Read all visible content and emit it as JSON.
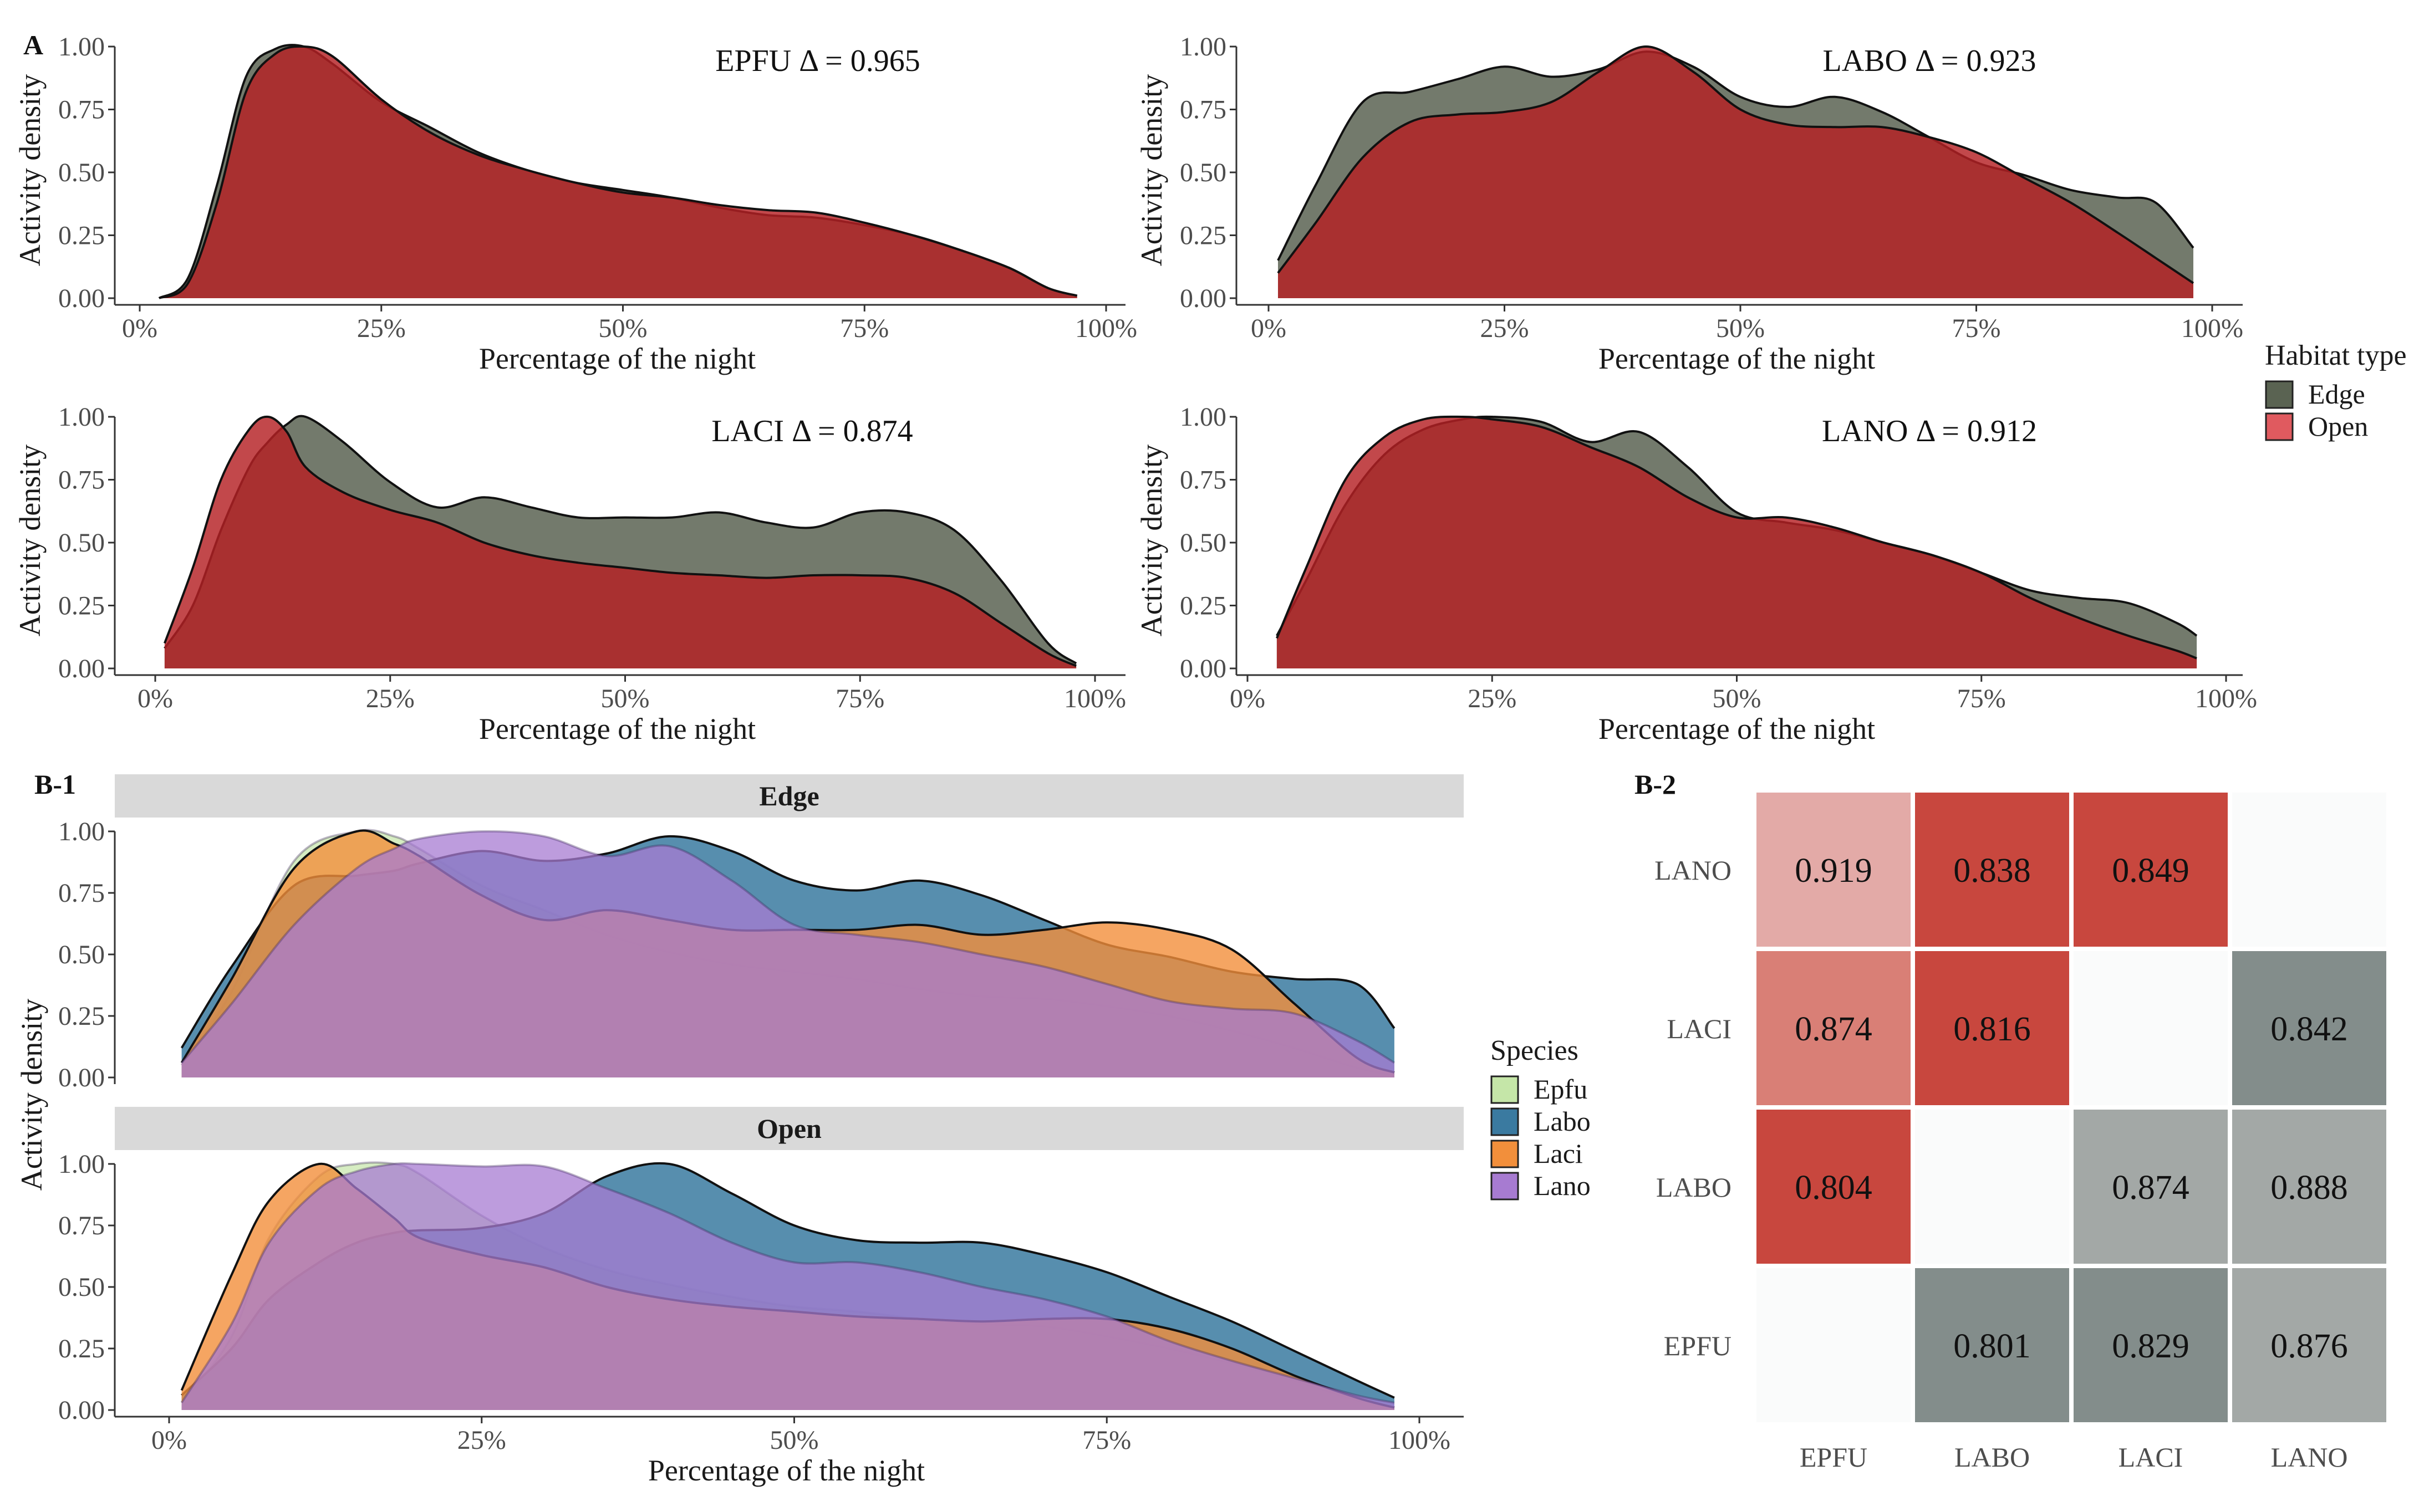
{
  "colors": {
    "edge": "#5a6352",
    "open": "#b42023",
    "open_legend": "#e05a5f",
    "epfu": "#c5e6a8",
    "labo": "#3a7aa0",
    "laci": "#f28f3b",
    "lano": "#a77bd1",
    "strip": "#d9d9d9",
    "heat_open_hi": "#c8473e",
    "heat_open_lo": "#e3aaa7",
    "heat_edge_hi": "#838d8b",
    "heat_edge_lo": "#a3a8a6",
    "heat_empty": "#fafbfb"
  },
  "panel_a_label": "A",
  "panel_b1_label": "B-1",
  "panel_b2_label": "B-2",
  "habitat_legend": {
    "title": "Habitat type",
    "items": [
      {
        "label": "Edge",
        "color_key": "edge"
      },
      {
        "label": "Open",
        "color_key": "open_legend"
      }
    ]
  },
  "species_legend": {
    "title": "Species",
    "items": [
      {
        "label": "Epfu",
        "color_key": "epfu"
      },
      {
        "label": "Labo",
        "color_key": "labo"
      },
      {
        "label": "Laci",
        "color_key": "laci"
      },
      {
        "label": "Lano",
        "color_key": "lano"
      }
    ]
  },
  "chart_data": [
    {
      "id": "epfu",
      "type": "area",
      "annotation": "EPFU Δ = 0.965",
      "xlabel": "Percentage of the night",
      "ylabel": "Activity density",
      "xlim": [
        0,
        1
      ],
      "ylim": [
        0,
        1
      ],
      "x_ticks": [
        "0%",
        "25%",
        "50%",
        "75%",
        "100%"
      ],
      "y_ticks": [
        "0.00",
        "0.25",
        "0.50",
        "0.75",
        "1.00"
      ],
      "x": [
        0.02,
        0.05,
        0.08,
        0.11,
        0.14,
        0.17,
        0.2,
        0.25,
        0.3,
        0.35,
        0.4,
        0.45,
        0.5,
        0.55,
        0.6,
        0.65,
        0.7,
        0.75,
        0.8,
        0.85,
        0.9,
        0.94,
        0.97
      ],
      "series": [
        {
          "name": "Edge",
          "values": [
            0.0,
            0.08,
            0.45,
            0.88,
            0.99,
            1.0,
            0.93,
            0.78,
            0.68,
            0.58,
            0.51,
            0.46,
            0.43,
            0.4,
            0.36,
            0.33,
            0.32,
            0.29,
            0.25,
            0.19,
            0.12,
            0.04,
            0.01
          ]
        },
        {
          "name": "Open",
          "values": [
            0.0,
            0.06,
            0.38,
            0.82,
            0.97,
            1.0,
            0.96,
            0.79,
            0.66,
            0.57,
            0.51,
            0.46,
            0.42,
            0.4,
            0.37,
            0.35,
            0.34,
            0.3,
            0.25,
            0.19,
            0.12,
            0.04,
            0.01
          ]
        }
      ]
    },
    {
      "id": "labo",
      "type": "area",
      "annotation": "LABO Δ = 0.923",
      "xlabel": "Percentage of the night",
      "ylabel": "Activity density",
      "xlim": [
        0,
        1
      ],
      "ylim": [
        0,
        1
      ],
      "x_ticks": [
        "0%",
        "25%",
        "50%",
        "75%",
        "100%"
      ],
      "y_ticks": [
        "0.00",
        "0.25",
        "0.50",
        "0.75",
        "1.00"
      ],
      "x": [
        0.01,
        0.05,
        0.1,
        0.15,
        0.2,
        0.25,
        0.3,
        0.35,
        0.4,
        0.45,
        0.5,
        0.55,
        0.6,
        0.65,
        0.7,
        0.75,
        0.8,
        0.85,
        0.9,
        0.94,
        0.98
      ],
      "series": [
        {
          "name": "Edge",
          "values": [
            0.15,
            0.45,
            0.78,
            0.82,
            0.87,
            0.92,
            0.88,
            0.91,
            0.98,
            0.92,
            0.8,
            0.76,
            0.8,
            0.74,
            0.64,
            0.54,
            0.49,
            0.43,
            0.4,
            0.38,
            0.2
          ]
        },
        {
          "name": "Open",
          "values": [
            0.1,
            0.3,
            0.56,
            0.7,
            0.73,
            0.74,
            0.78,
            0.9,
            1.0,
            0.9,
            0.75,
            0.69,
            0.68,
            0.68,
            0.64,
            0.58,
            0.48,
            0.38,
            0.26,
            0.16,
            0.06
          ]
        }
      ]
    },
    {
      "id": "laci",
      "type": "area",
      "annotation": "LACI Δ = 0.874",
      "xlabel": "Percentage of the night",
      "ylabel": "Activity density",
      "xlim": [
        0,
        1
      ],
      "ylim": [
        0,
        1
      ],
      "x_ticks": [
        "0%",
        "25%",
        "50%",
        "75%",
        "100%"
      ],
      "y_ticks": [
        "0.00",
        "0.25",
        "0.50",
        "0.75",
        "1.00"
      ],
      "x": [
        0.01,
        0.04,
        0.07,
        0.1,
        0.12,
        0.14,
        0.16,
        0.2,
        0.25,
        0.3,
        0.35,
        0.4,
        0.45,
        0.5,
        0.55,
        0.6,
        0.65,
        0.7,
        0.75,
        0.8,
        0.85,
        0.9,
        0.95,
        0.98
      ],
      "series": [
        {
          "name": "Edge",
          "values": [
            0.08,
            0.25,
            0.55,
            0.8,
            0.9,
            0.97,
            1.0,
            0.9,
            0.74,
            0.64,
            0.68,
            0.64,
            0.6,
            0.6,
            0.6,
            0.62,
            0.58,
            0.56,
            0.62,
            0.62,
            0.55,
            0.35,
            0.1,
            0.02
          ]
        },
        {
          "name": "Open",
          "values": [
            0.1,
            0.4,
            0.75,
            0.95,
            1.0,
            0.94,
            0.8,
            0.7,
            0.63,
            0.58,
            0.5,
            0.45,
            0.42,
            0.4,
            0.38,
            0.37,
            0.36,
            0.37,
            0.37,
            0.36,
            0.3,
            0.18,
            0.06,
            0.01
          ]
        }
      ]
    },
    {
      "id": "lano",
      "type": "area",
      "annotation": "LANO Δ = 0.912",
      "xlabel": "Percentage of the night",
      "ylabel": "Activity density",
      "xlim": [
        0,
        1
      ],
      "ylim": [
        0,
        1
      ],
      "x_ticks": [
        "0%",
        "25%",
        "50%",
        "75%",
        "100%"
      ],
      "y_ticks": [
        "0.00",
        "0.25",
        "0.50",
        "0.75",
        "1.00"
      ],
      "x": [
        0.03,
        0.06,
        0.1,
        0.14,
        0.18,
        0.22,
        0.25,
        0.3,
        0.35,
        0.4,
        0.45,
        0.5,
        0.55,
        0.6,
        0.65,
        0.7,
        0.75,
        0.8,
        0.85,
        0.9,
        0.95,
        0.97
      ],
      "series": [
        {
          "name": "Edge",
          "values": [
            0.13,
            0.35,
            0.65,
            0.85,
            0.95,
            0.99,
            1.0,
            0.98,
            0.9,
            0.94,
            0.8,
            0.62,
            0.58,
            0.55,
            0.5,
            0.45,
            0.38,
            0.31,
            0.28,
            0.26,
            0.18,
            0.13
          ]
        },
        {
          "name": "Open",
          "values": [
            0.12,
            0.4,
            0.75,
            0.92,
            0.99,
            1.0,
            0.99,
            0.96,
            0.88,
            0.8,
            0.68,
            0.6,
            0.6,
            0.56,
            0.5,
            0.45,
            0.38,
            0.28,
            0.2,
            0.13,
            0.07,
            0.04
          ]
        }
      ]
    },
    {
      "id": "species_edge",
      "type": "area",
      "strip": "Edge",
      "ylabel": "Activity density",
      "xlim": [
        0,
        1
      ],
      "ylim": [
        0,
        1
      ],
      "y_ticks": [
        "0.00",
        "0.25",
        "0.50",
        "0.75",
        "1.00"
      ],
      "x": [
        0.01,
        0.05,
        0.1,
        0.15,
        0.18,
        0.2,
        0.25,
        0.3,
        0.35,
        0.4,
        0.45,
        0.5,
        0.55,
        0.6,
        0.65,
        0.7,
        0.75,
        0.8,
        0.85,
        0.9,
        0.95,
        0.98
      ],
      "series": [
        {
          "name": "Epfu",
          "values": [
            0.05,
            0.35,
            0.88,
            1.0,
            0.98,
            0.93,
            0.78,
            0.68,
            0.58,
            0.51,
            0.46,
            0.43,
            0.4,
            0.36,
            0.33,
            0.32,
            0.29,
            0.25,
            0.19,
            0.12,
            0.04,
            0.01
          ]
        },
        {
          "name": "Labo",
          "values": [
            0.12,
            0.45,
            0.78,
            0.82,
            0.84,
            0.87,
            0.92,
            0.88,
            0.91,
            0.98,
            0.92,
            0.8,
            0.76,
            0.8,
            0.74,
            0.64,
            0.54,
            0.49,
            0.43,
            0.4,
            0.38,
            0.2
          ]
        },
        {
          "name": "Laci",
          "values": [
            0.06,
            0.4,
            0.85,
            1.0,
            0.95,
            0.9,
            0.74,
            0.64,
            0.68,
            0.64,
            0.6,
            0.6,
            0.6,
            0.62,
            0.58,
            0.6,
            0.63,
            0.6,
            0.52,
            0.3,
            0.08,
            0.02
          ]
        },
        {
          "name": "Lano",
          "values": [
            0.06,
            0.3,
            0.62,
            0.85,
            0.93,
            0.97,
            1.0,
            0.98,
            0.9,
            0.94,
            0.8,
            0.62,
            0.58,
            0.55,
            0.5,
            0.45,
            0.38,
            0.31,
            0.28,
            0.26,
            0.15,
            0.06
          ]
        }
      ]
    },
    {
      "id": "species_open",
      "type": "area",
      "strip": "Open",
      "xlabel": "Percentage of the night",
      "ylabel": "Activity density",
      "xlim": [
        0,
        1
      ],
      "ylim": [
        0,
        1
      ],
      "x_ticks": [
        "0%",
        "25%",
        "50%",
        "75%",
        "100%"
      ],
      "y_ticks": [
        "0.00",
        "0.25",
        "0.50",
        "0.75",
        "1.00"
      ],
      "x": [
        0.01,
        0.05,
        0.08,
        0.12,
        0.15,
        0.18,
        0.2,
        0.25,
        0.3,
        0.35,
        0.4,
        0.45,
        0.5,
        0.55,
        0.6,
        0.65,
        0.7,
        0.75,
        0.8,
        0.85,
        0.9,
        0.95,
        0.98
      ],
      "series": [
        {
          "name": "Epfu",
          "values": [
            0.03,
            0.3,
            0.7,
            0.95,
            1.0,
            1.0,
            0.96,
            0.79,
            0.66,
            0.57,
            0.51,
            0.46,
            0.42,
            0.4,
            0.37,
            0.35,
            0.34,
            0.3,
            0.25,
            0.19,
            0.12,
            0.04,
            0.01
          ]
        },
        {
          "name": "Labo",
          "values": [
            0.06,
            0.25,
            0.45,
            0.6,
            0.68,
            0.72,
            0.73,
            0.74,
            0.8,
            0.95,
            1.0,
            0.88,
            0.75,
            0.69,
            0.68,
            0.68,
            0.63,
            0.56,
            0.46,
            0.36,
            0.24,
            0.12,
            0.05
          ]
        },
        {
          "name": "Laci",
          "values": [
            0.08,
            0.55,
            0.85,
            1.0,
            0.9,
            0.78,
            0.7,
            0.63,
            0.58,
            0.5,
            0.45,
            0.42,
            0.4,
            0.38,
            0.37,
            0.36,
            0.37,
            0.37,
            0.33,
            0.25,
            0.14,
            0.05,
            0.01
          ]
        },
        {
          "name": "Lano",
          "values": [
            0.03,
            0.35,
            0.68,
            0.9,
            0.97,
            1.0,
            1.0,
            0.99,
            0.99,
            0.9,
            0.8,
            0.68,
            0.6,
            0.6,
            0.56,
            0.5,
            0.45,
            0.38,
            0.28,
            0.2,
            0.13,
            0.06,
            0.03
          ]
        }
      ]
    },
    {
      "id": "overlap_heatmap",
      "type": "heatmap",
      "x_categories": [
        "EPFU",
        "LABO",
        "LACI",
        "LANO"
      ],
      "y_categories": [
        "EPFU",
        "LABO",
        "LACI",
        "LANO"
      ],
      "cells": [
        {
          "x": "EPFU",
          "y": "LANO",
          "value": "0.919",
          "habitat": "Open"
        },
        {
          "x": "LABO",
          "y": "LANO",
          "value": "0.838",
          "habitat": "Open"
        },
        {
          "x": "LACI",
          "y": "LANO",
          "value": "0.849",
          "habitat": "Open"
        },
        {
          "x": "EPFU",
          "y": "LACI",
          "value": "0.874",
          "habitat": "Open"
        },
        {
          "x": "LABO",
          "y": "LACI",
          "value": "0.816",
          "habitat": "Open"
        },
        {
          "x": "LANO",
          "y": "LACI",
          "value": "0.842",
          "habitat": "Edge"
        },
        {
          "x": "EPFU",
          "y": "LABO",
          "value": "0.804",
          "habitat": "Open"
        },
        {
          "x": "LACI",
          "y": "LABO",
          "value": "0.874",
          "habitat": "Edge"
        },
        {
          "x": "LANO",
          "y": "LABO",
          "value": "0.888",
          "habitat": "Edge"
        },
        {
          "x": "LABO",
          "y": "EPFU",
          "value": "0.801",
          "habitat": "Edge"
        },
        {
          "x": "LACI",
          "y": "EPFU",
          "value": "0.829",
          "habitat": "Edge"
        },
        {
          "x": "LANO",
          "y": "EPFU",
          "value": "0.876",
          "habitat": "Edge"
        }
      ]
    }
  ]
}
